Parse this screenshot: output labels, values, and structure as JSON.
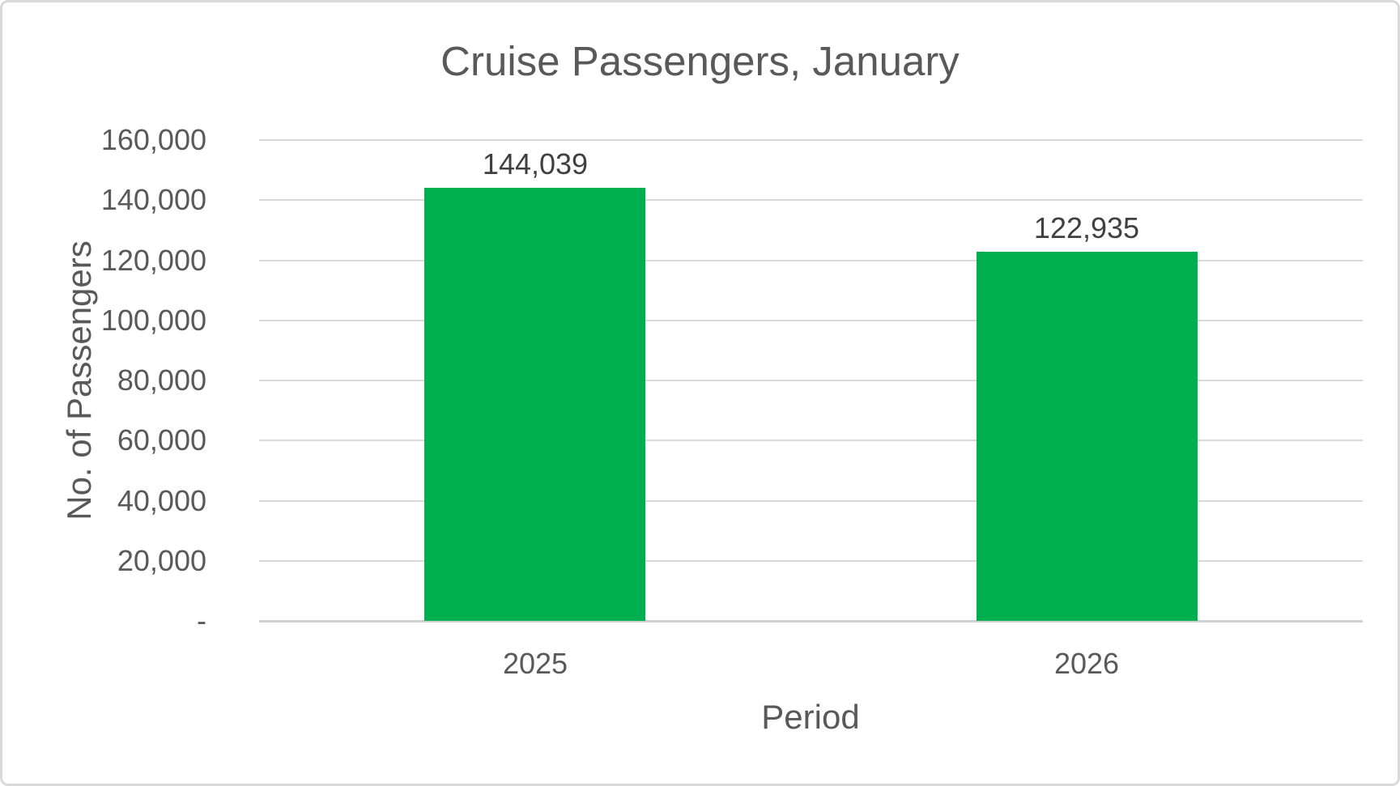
{
  "frame": {
    "background_color": "#ffffff",
    "border_color": "#d9d9d9"
  },
  "chart_data": {
    "type": "bar",
    "title": "Cruise Passengers, January",
    "xlabel": "Period",
    "ylabel": "No. of Passengers",
    "categories": [
      "2025",
      "2026"
    ],
    "values": [
      144039,
      122935
    ],
    "data_labels": [
      "144,039",
      "122,935"
    ],
    "y_tick_values": [
      160000,
      140000,
      120000,
      100000,
      80000,
      60000,
      40000,
      20000,
      0
    ],
    "y_tick_labels": [
      "160,000",
      "140,000",
      "120,000",
      "100,000",
      "80,000",
      "60,000",
      "40,000",
      "20,000",
      "-"
    ],
    "ylim": [
      0,
      160000
    ],
    "grid": true,
    "legend": false,
    "bar_color": "#00B050",
    "gridline_color": "#d9d9d9",
    "axis_line_color": "#ccd1d1",
    "title_color": "#595959",
    "tick_color": "#595959",
    "data_label_color": "#404040"
  }
}
